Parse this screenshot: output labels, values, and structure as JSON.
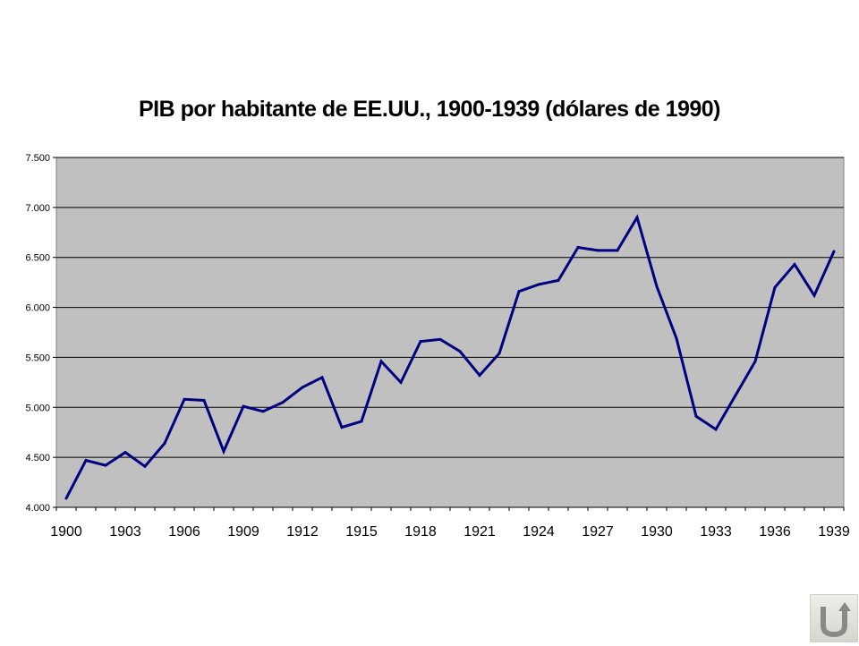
{
  "chart_data": {
    "type": "line",
    "title": "PIB por habitante de EE.UU., 1900-1939 (dólares de 1990)",
    "xlabel": "",
    "ylabel": "",
    "ylim": [
      4000,
      7500
    ],
    "y_ticks": [
      "4.000",
      "4.500",
      "5.000",
      "5.500",
      "6.000",
      "6.500",
      "7.000",
      "7.500"
    ],
    "y_tick_values": [
      4000,
      4500,
      5000,
      5500,
      6000,
      6500,
      7000,
      7500
    ],
    "x_ticks": [
      "1900",
      "1903",
      "1906",
      "1909",
      "1912",
      "1915",
      "1918",
      "1921",
      "1924",
      "1927",
      "1930",
      "1933",
      "1936",
      "1939"
    ],
    "x_tick_values": [
      1900,
      1903,
      1906,
      1909,
      1912,
      1915,
      1918,
      1921,
      1924,
      1927,
      1930,
      1933,
      1936,
      1939
    ],
    "grid": true,
    "legend": "none",
    "colors": {
      "line": "#000080",
      "plot_background": "#c0c0c0",
      "gridline": "#000000"
    },
    "series": [
      {
        "x": [
          1900,
          1901,
          1902,
          1903,
          1904,
          1905,
          1906,
          1907,
          1908,
          1909,
          1910,
          1911,
          1912,
          1913,
          1914,
          1915,
          1916,
          1917,
          1918,
          1919,
          1920,
          1921,
          1922,
          1923,
          1924,
          1925,
          1926,
          1927,
          1928,
          1929,
          1930,
          1931,
          1932,
          1933,
          1934,
          1935,
          1936,
          1937,
          1938,
          1939
        ],
        "values": [
          4090,
          4470,
          4420,
          4550,
          4410,
          4640,
          5080,
          5070,
          4560,
          5010,
          4960,
          5050,
          5200,
          5300,
          4800,
          4860,
          5460,
          5250,
          5660,
          5680,
          5560,
          5320,
          5540,
          6160,
          6230,
          6270,
          6600,
          6570,
          6570,
          6900,
          6210,
          5690,
          4910,
          4780,
          5120,
          5460,
          6200,
          6430,
          6120,
          6560
        ]
      }
    ]
  },
  "nav": {
    "back_icon": "return-arrow-icon"
  }
}
